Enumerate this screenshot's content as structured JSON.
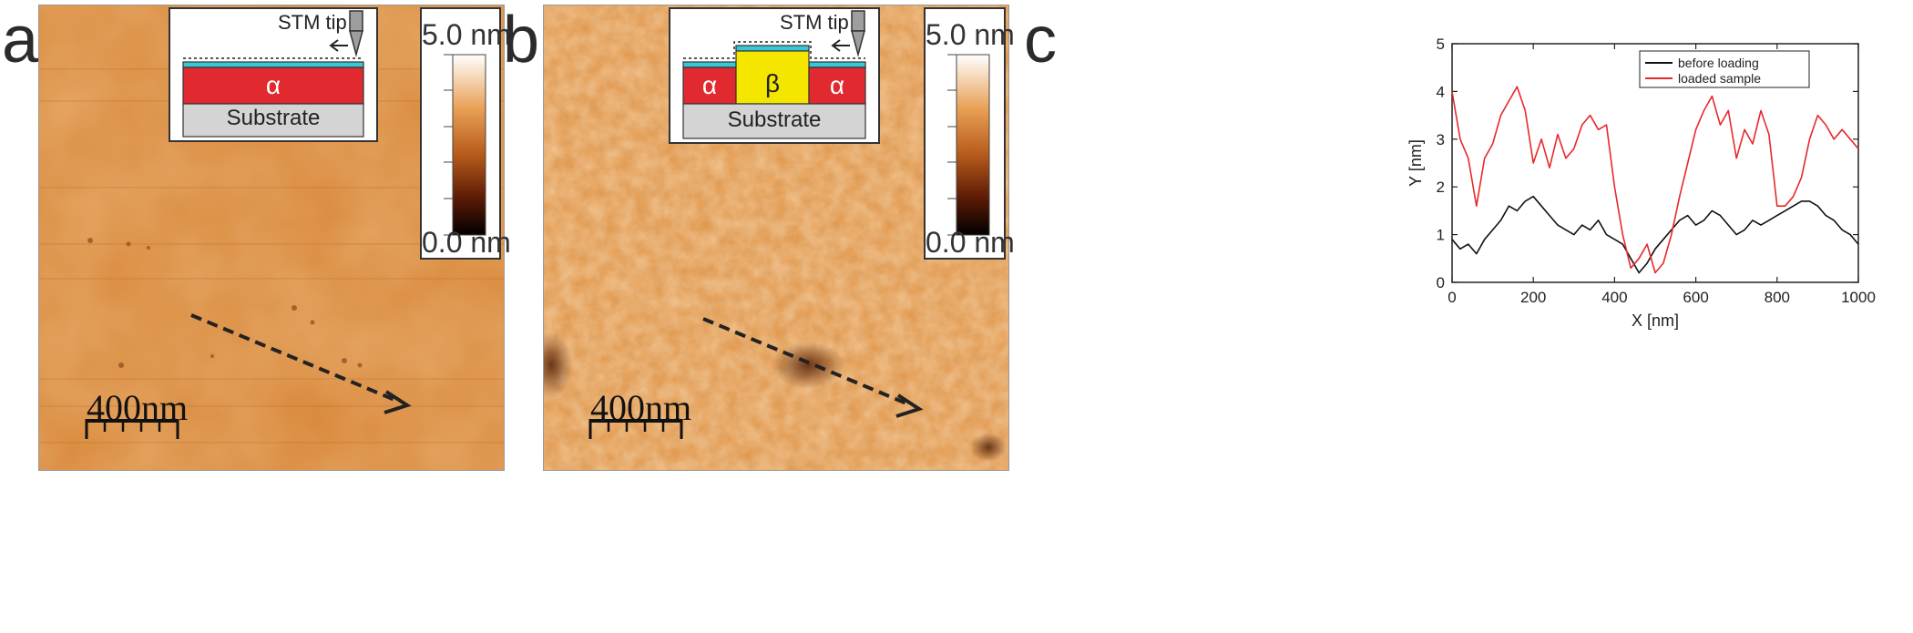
{
  "panels": {
    "a": {
      "letter": "a",
      "inset": {
        "tip_label": "STM tip",
        "layer_label": "α",
        "substrate_label": "Substrate"
      },
      "colorbar": {
        "max_label": "5.0 nm",
        "min_label": "0.0 nm"
      },
      "scalebar_label": "400nm"
    },
    "b": {
      "letter": "b",
      "inset": {
        "tip_label": "STM tip",
        "left_label": "α",
        "center_label": "β",
        "right_label": "α",
        "substrate_label": "Substrate"
      },
      "colorbar": {
        "max_label": "5.0 nm",
        "min_label": "0.0 nm"
      },
      "scalebar_label": "400nm"
    },
    "c": {
      "letter": "c"
    }
  },
  "colors": {
    "image_a": "#d9893b",
    "image_b": "#de9448",
    "alpha_layer": "#e02a2f",
    "beta_layer": "#f5e600",
    "top_film": "#38c7d6",
    "substrate": "#d4d4d4",
    "before_loading": "#111111",
    "loaded_sample": "#e8282b"
  },
  "chart_data": {
    "type": "line",
    "xlabel": "X [nm]",
    "ylabel": "Y [nm]",
    "xlim": [
      0,
      1000
    ],
    "ylim": [
      0,
      5
    ],
    "xticks": [
      0,
      200,
      400,
      600,
      800,
      1000
    ],
    "yticks": [
      0,
      1,
      2,
      3,
      4,
      5
    ],
    "legend_position": "top-right",
    "series": [
      {
        "name": "before loading",
        "x": [
          0,
          20,
          40,
          60,
          80,
          100,
          120,
          140,
          160,
          180,
          200,
          220,
          240,
          260,
          280,
          300,
          320,
          340,
          360,
          380,
          400,
          420,
          440,
          460,
          480,
          500,
          520,
          540,
          560,
          580,
          600,
          620,
          640,
          660,
          680,
          700,
          720,
          740,
          760,
          780,
          800,
          820,
          840,
          860,
          880,
          900,
          920,
          940,
          960,
          980,
          1000
        ],
        "values": [
          0.9,
          0.7,
          0.8,
          0.6,
          0.9,
          1.1,
          1.3,
          1.6,
          1.5,
          1.7,
          1.8,
          1.6,
          1.4,
          1.2,
          1.1,
          1.0,
          1.2,
          1.1,
          1.3,
          1.0,
          0.9,
          0.8,
          0.5,
          0.2,
          0.4,
          0.7,
          0.9,
          1.1,
          1.3,
          1.4,
          1.2,
          1.3,
          1.5,
          1.4,
          1.2,
          1.0,
          1.1,
          1.3,
          1.2,
          1.3,
          1.4,
          1.5,
          1.6,
          1.7,
          1.7,
          1.6,
          1.4,
          1.3,
          1.1,
          1.0,
          0.8
        ]
      },
      {
        "name": "loaded sample",
        "x": [
          0,
          20,
          40,
          60,
          80,
          100,
          120,
          140,
          160,
          180,
          200,
          220,
          240,
          260,
          280,
          300,
          320,
          340,
          360,
          380,
          400,
          420,
          440,
          460,
          480,
          500,
          520,
          540,
          560,
          580,
          600,
          620,
          640,
          660,
          680,
          700,
          720,
          740,
          760,
          780,
          800,
          820,
          840,
          860,
          880,
          900,
          920,
          940,
          960,
          980,
          1000
        ],
        "values": [
          4.0,
          3.0,
          2.6,
          1.6,
          2.6,
          2.9,
          3.5,
          3.8,
          4.1,
          3.6,
          2.5,
          3.0,
          2.4,
          3.1,
          2.6,
          2.8,
          3.3,
          3.5,
          3.2,
          3.3,
          2.0,
          1.0,
          0.3,
          0.5,
          0.8,
          0.2,
          0.4,
          1.0,
          1.8,
          2.5,
          3.2,
          3.6,
          3.9,
          3.3,
          3.6,
          2.6,
          3.2,
          2.9,
          3.6,
          3.1,
          1.6,
          1.6,
          1.8,
          2.2,
          3.0,
          3.5,
          3.3,
          3.0,
          3.2,
          3.0,
          2.8
        ]
      }
    ]
  }
}
